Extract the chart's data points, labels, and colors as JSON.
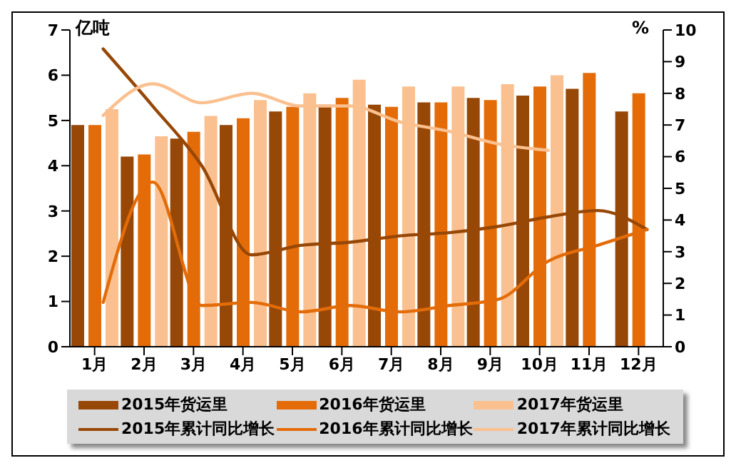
{
  "chart_data": {
    "type": "bar",
    "ylabel": "亿吨",
    "y2label": "%",
    "categories": [
      "1月",
      "2月",
      "3月",
      "4月",
      "5月",
      "6月",
      "7月",
      "8月",
      "9月",
      "10月",
      "11月",
      "12月"
    ],
    "series": [
      {
        "name": "2015年货运里",
        "color": "#974706",
        "values": [
          4.9,
          4.2,
          4.6,
          4.9,
          5.2,
          5.35,
          5.35,
          5.4,
          5.5,
          5.55,
          5.7,
          5.2
        ]
      },
      {
        "name": "2016年货运里",
        "color": "#e36c09",
        "values": [
          4.9,
          4.25,
          4.75,
          5.05,
          5.3,
          5.5,
          5.3,
          5.4,
          5.45,
          5.75,
          6.05,
          5.6
        ]
      },
      {
        "name": "2017年货运里",
        "color": "#fac08f",
        "values": [
          5.25,
          4.65,
          5.1,
          5.45,
          5.6,
          5.9,
          5.75,
          5.75,
          5.8,
          6.0,
          null,
          null
        ]
      },
      {
        "name": "2015年累计同比增长",
        "type": "line",
        "axis": "y2",
        "color": "#974706",
        "values": [
          9.4,
          7.6,
          5.7,
          2.9,
          3.2,
          3.3,
          3.5,
          3.6,
          3.8,
          4.1,
          4.3,
          3.7
        ]
      },
      {
        "name": "2016年累计同比增长",
        "type": "line",
        "axis": "y2",
        "color": "#e36c09",
        "values": [
          1.4,
          5.2,
          1.3,
          1.4,
          1.1,
          1.3,
          1.1,
          1.3,
          1.5,
          2.7,
          3.2,
          3.7
        ]
      },
      {
        "name": "2017年累计同比增长",
        "type": "line",
        "axis": "y2",
        "color": "#fac08f",
        "values": [
          7.3,
          8.3,
          7.7,
          8.0,
          7.6,
          7.6,
          7.1,
          6.8,
          6.4,
          6.2,
          null,
          null
        ]
      }
    ],
    "ylim": [
      0,
      7
    ],
    "yticks": [
      0,
      1,
      2,
      3,
      4,
      5,
      6,
      7
    ],
    "y2lim": [
      0,
      10
    ],
    "y2ticks": [
      0,
      1,
      2,
      3,
      4,
      5,
      6,
      7,
      8,
      9,
      10
    ],
    "legend": "bottom",
    "grid": false,
    "marker": "none",
    "line_style": "solid"
  }
}
